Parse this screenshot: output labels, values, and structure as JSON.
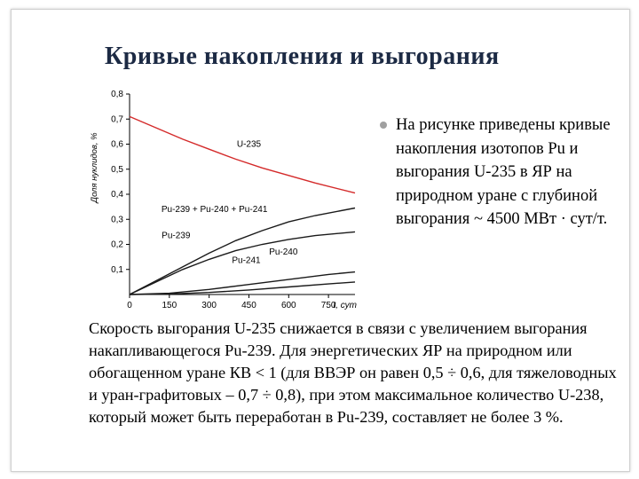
{
  "slide": {
    "title": "Кривые накопления и выгорания",
    "bullet": "На рисунке приведены кривые накопления изотопов Pu и выгорания U-235 в ЯР на природном уране с глубиной выгорания ~ 4500 МВт · сут/т.",
    "paragraph": "Скорость выгорания U-235 снижается в связи с увеличением выгорания накапливающегося Pu-239. Для энергетических ЯР на природном или обогащенном уране КВ < 1 (для ВВЭР он равен 0,5 ÷ 0,6, для тяжеловодных и уран-графитовых – 0,7 ÷ 0,8), при этом максимальное количество U-238, который может быть переработан в Pu-239, составляет не более 3 %."
  },
  "chart_data": {
    "type": "line",
    "ylabel": "Доля нуклидов, %",
    "xlabel": "t, сут",
    "xlim": [
      0,
      850
    ],
    "ylim": [
      0,
      0.8
    ],
    "x_ticks": [
      "0",
      "150",
      "300",
      "450",
      "600",
      "750"
    ],
    "x_tick_values": [
      0,
      150,
      300,
      450,
      600,
      750
    ],
    "y_ticks": [
      "0,1",
      "0,2",
      "0,3",
      "0,4",
      "0,5",
      "0,6",
      "0,7",
      "0,8"
    ],
    "y_tick_values": [
      0.1,
      0.2,
      0.3,
      0.4,
      0.5,
      0.6,
      0.7,
      0.8
    ],
    "grid": false,
    "series": [
      {
        "name": "U-235",
        "color": "#d42a2a",
        "x": [
          0,
          100,
          200,
          300,
          400,
          500,
          600,
          700,
          850
        ],
        "y": [
          0.71,
          0.665,
          0.62,
          0.58,
          0.54,
          0.505,
          0.475,
          0.445,
          0.405
        ]
      },
      {
        "name": "Pu-239 + Pu-240 + Pu-241",
        "color": "#1a1a1a",
        "x": [
          0,
          100,
          200,
          300,
          400,
          500,
          600,
          700,
          850
        ],
        "y": [
          0,
          0.055,
          0.11,
          0.165,
          0.215,
          0.255,
          0.29,
          0.315,
          0.345
        ]
      },
      {
        "name": "Pu-239",
        "color": "#1a1a1a",
        "x": [
          0,
          100,
          200,
          300,
          400,
          500,
          600,
          700,
          850
        ],
        "y": [
          0,
          0.05,
          0.1,
          0.14,
          0.175,
          0.2,
          0.22,
          0.235,
          0.25
        ]
      },
      {
        "name": "Pu-240",
        "color": "#1a1a1a",
        "x": [
          0,
          150,
          300,
          450,
          600,
          750,
          850
        ],
        "y": [
          0,
          0.005,
          0.02,
          0.04,
          0.06,
          0.08,
          0.09
        ]
      },
      {
        "name": "Pu-241",
        "color": "#1a1a1a",
        "x": [
          0,
          150,
          300,
          450,
          600,
          750,
          850
        ],
        "y": [
          0,
          0.002,
          0.008,
          0.018,
          0.03,
          0.042,
          0.05
        ]
      }
    ],
    "annotations": [
      {
        "text": "U-235",
        "x": 450,
        "y": 0.59
      },
      {
        "text": "Pu-239 + Pu-240 + Pu-241",
        "x": 320,
        "y": 0.33
      },
      {
        "text": "Pu-239",
        "x": 175,
        "y": 0.225
      },
      {
        "text": "Pu-240",
        "x": 580,
        "y": 0.16
      },
      {
        "text": "Pu-241",
        "x": 440,
        "y": 0.125
      }
    ]
  }
}
